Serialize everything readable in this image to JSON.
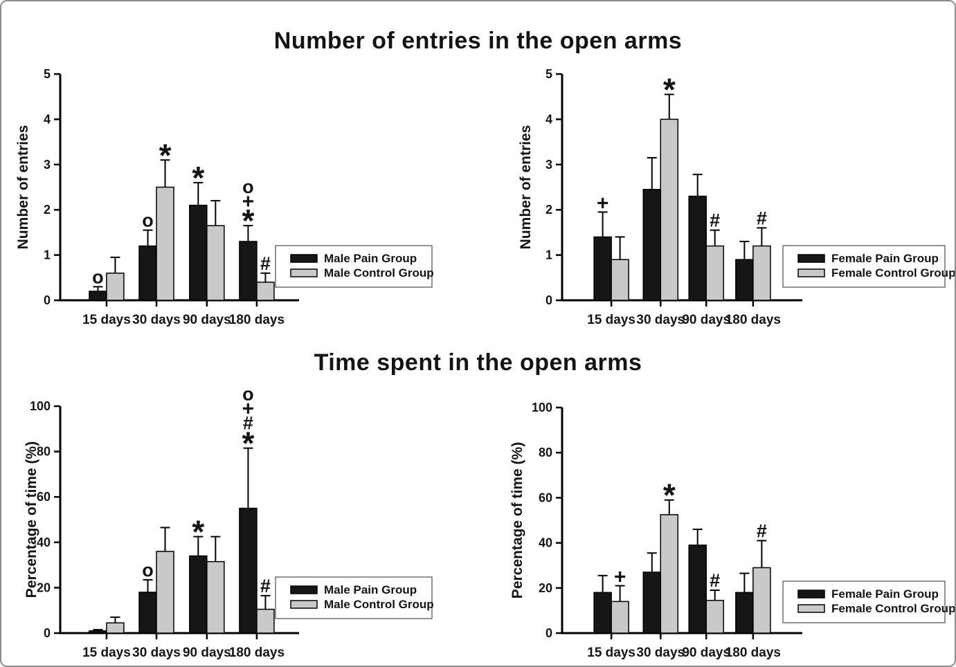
{
  "page": {
    "background": "#ffffff",
    "border_color": "#8c8c8c"
  },
  "titles": {
    "top": "Number of entries in the open arms",
    "bottom": "Time spent in the open arms"
  },
  "colors": {
    "pain_bar": "#161616",
    "control_bar": "#c9c9c9",
    "axis": "#000000",
    "text": "#141414",
    "legend_border": "#6e6e6e"
  },
  "chart_data": [
    {
      "type": "bar",
      "panel": "entries-male",
      "ylabel": "Number of entries",
      "xlabel": "",
      "ylim": [
        0,
        5
      ],
      "yticks": [
        0,
        1,
        2,
        3,
        4,
        5
      ],
      "grid": false,
      "legend_position": "right-inside",
      "categories": [
        "15 days",
        "30 days",
        "90 days",
        "180 days"
      ],
      "series": [
        {
          "name": "Male Pain Group",
          "role": "pain",
          "color_hex": "#161616",
          "values": [
            0.2,
            1.2,
            2.1,
            1.3
          ],
          "errors_up": [
            0.1,
            0.35,
            0.5,
            0.35
          ],
          "sig_markers": [
            [
              "o"
            ],
            [
              "o"
            ],
            [
              "*"
            ],
            [
              "o",
              "+",
              "*"
            ]
          ]
        },
        {
          "name": "Male Control Group",
          "role": "control",
          "color_hex": "#c9c9c9",
          "values": [
            0.6,
            2.5,
            1.65,
            0.4
          ],
          "errors_up": [
            0.35,
            0.6,
            0.55,
            0.2
          ],
          "sig_markers": [
            [],
            [
              "*"
            ],
            [],
            [
              "#"
            ]
          ]
        }
      ]
    },
    {
      "type": "bar",
      "panel": "entries-female",
      "ylabel": "Number of entries",
      "xlabel": "",
      "ylim": [
        0,
        5
      ],
      "yticks": [
        0,
        1,
        2,
        3,
        4,
        5
      ],
      "grid": false,
      "legend_position": "right-inside",
      "categories": [
        "15 days",
        "30 days",
        "90 days",
        "180 days"
      ],
      "series": [
        {
          "name": "Female Pain Group",
          "role": "pain",
          "color_hex": "#161616",
          "values": [
            1.4,
            2.45,
            2.3,
            0.9
          ],
          "errors_up": [
            0.55,
            0.7,
            0.48,
            0.4
          ],
          "sig_markers": [
            [
              "+"
            ],
            [],
            [],
            []
          ]
        },
        {
          "name": "Female Control Group",
          "role": "control",
          "color_hex": "#c9c9c9",
          "values": [
            0.9,
            4.0,
            1.2,
            1.2
          ],
          "errors_up": [
            0.5,
            0.55,
            0.35,
            0.4
          ],
          "sig_markers": [
            [],
            [
              "*"
            ],
            [
              "#"
            ],
            [
              "#"
            ]
          ]
        }
      ]
    },
    {
      "type": "bar",
      "panel": "time-male",
      "ylabel": "Percentage of time (%)",
      "xlabel": "",
      "ylim": [
        0,
        100
      ],
      "yticks": [
        0,
        20,
        40,
        60,
        80,
        100
      ],
      "grid": false,
      "legend_position": "right-inside",
      "categories": [
        "15 days",
        "30 days",
        "90 days",
        "180 days"
      ],
      "series": [
        {
          "name": "Male Pain Group",
          "role": "pain",
          "color_hex": "#161616",
          "values": [
            1,
            18,
            34,
            55
          ],
          "errors_up": [
            0.5,
            5.5,
            8.5,
            26.5
          ],
          "sig_markers": [
            [],
            [
              "o"
            ],
            [
              "*"
            ],
            [
              "o",
              "+",
              "#",
              "*"
            ]
          ]
        },
        {
          "name": "Male Control Group",
          "role": "control",
          "color_hex": "#c9c9c9",
          "values": [
            4.5,
            36,
            31.5,
            10.5
          ],
          "errors_up": [
            2.5,
            10.5,
            11,
            6
          ],
          "sig_markers": [
            [],
            [],
            [],
            [
              "#"
            ]
          ]
        }
      ]
    },
    {
      "type": "bar",
      "panel": "time-female",
      "ylabel": "Percentage of time (%)",
      "xlabel": "",
      "ylim": [
        0,
        100
      ],
      "yticks": [
        0,
        20,
        40,
        60,
        80,
        100
      ],
      "grid": false,
      "legend_position": "right-inside",
      "categories": [
        "15 days",
        "30 days",
        "90 days",
        "180 days"
      ],
      "series": [
        {
          "name": "Female Pain Group",
          "role": "pain",
          "color_hex": "#161616",
          "values": [
            18,
            27,
            39,
            18
          ],
          "errors_up": [
            7.5,
            8.5,
            7,
            8.5
          ],
          "sig_markers": [
            [],
            [],
            [],
            []
          ]
        },
        {
          "name": "Female Control Group",
          "role": "control",
          "color_hex": "#c9c9c9",
          "values": [
            14,
            52.5,
            14.5,
            29
          ],
          "errors_up": [
            7,
            6.5,
            4.5,
            12
          ],
          "sig_markers": [
            [
              "+"
            ],
            [
              "*"
            ],
            [
              "#"
            ],
            [
              "#"
            ]
          ]
        }
      ]
    }
  ]
}
